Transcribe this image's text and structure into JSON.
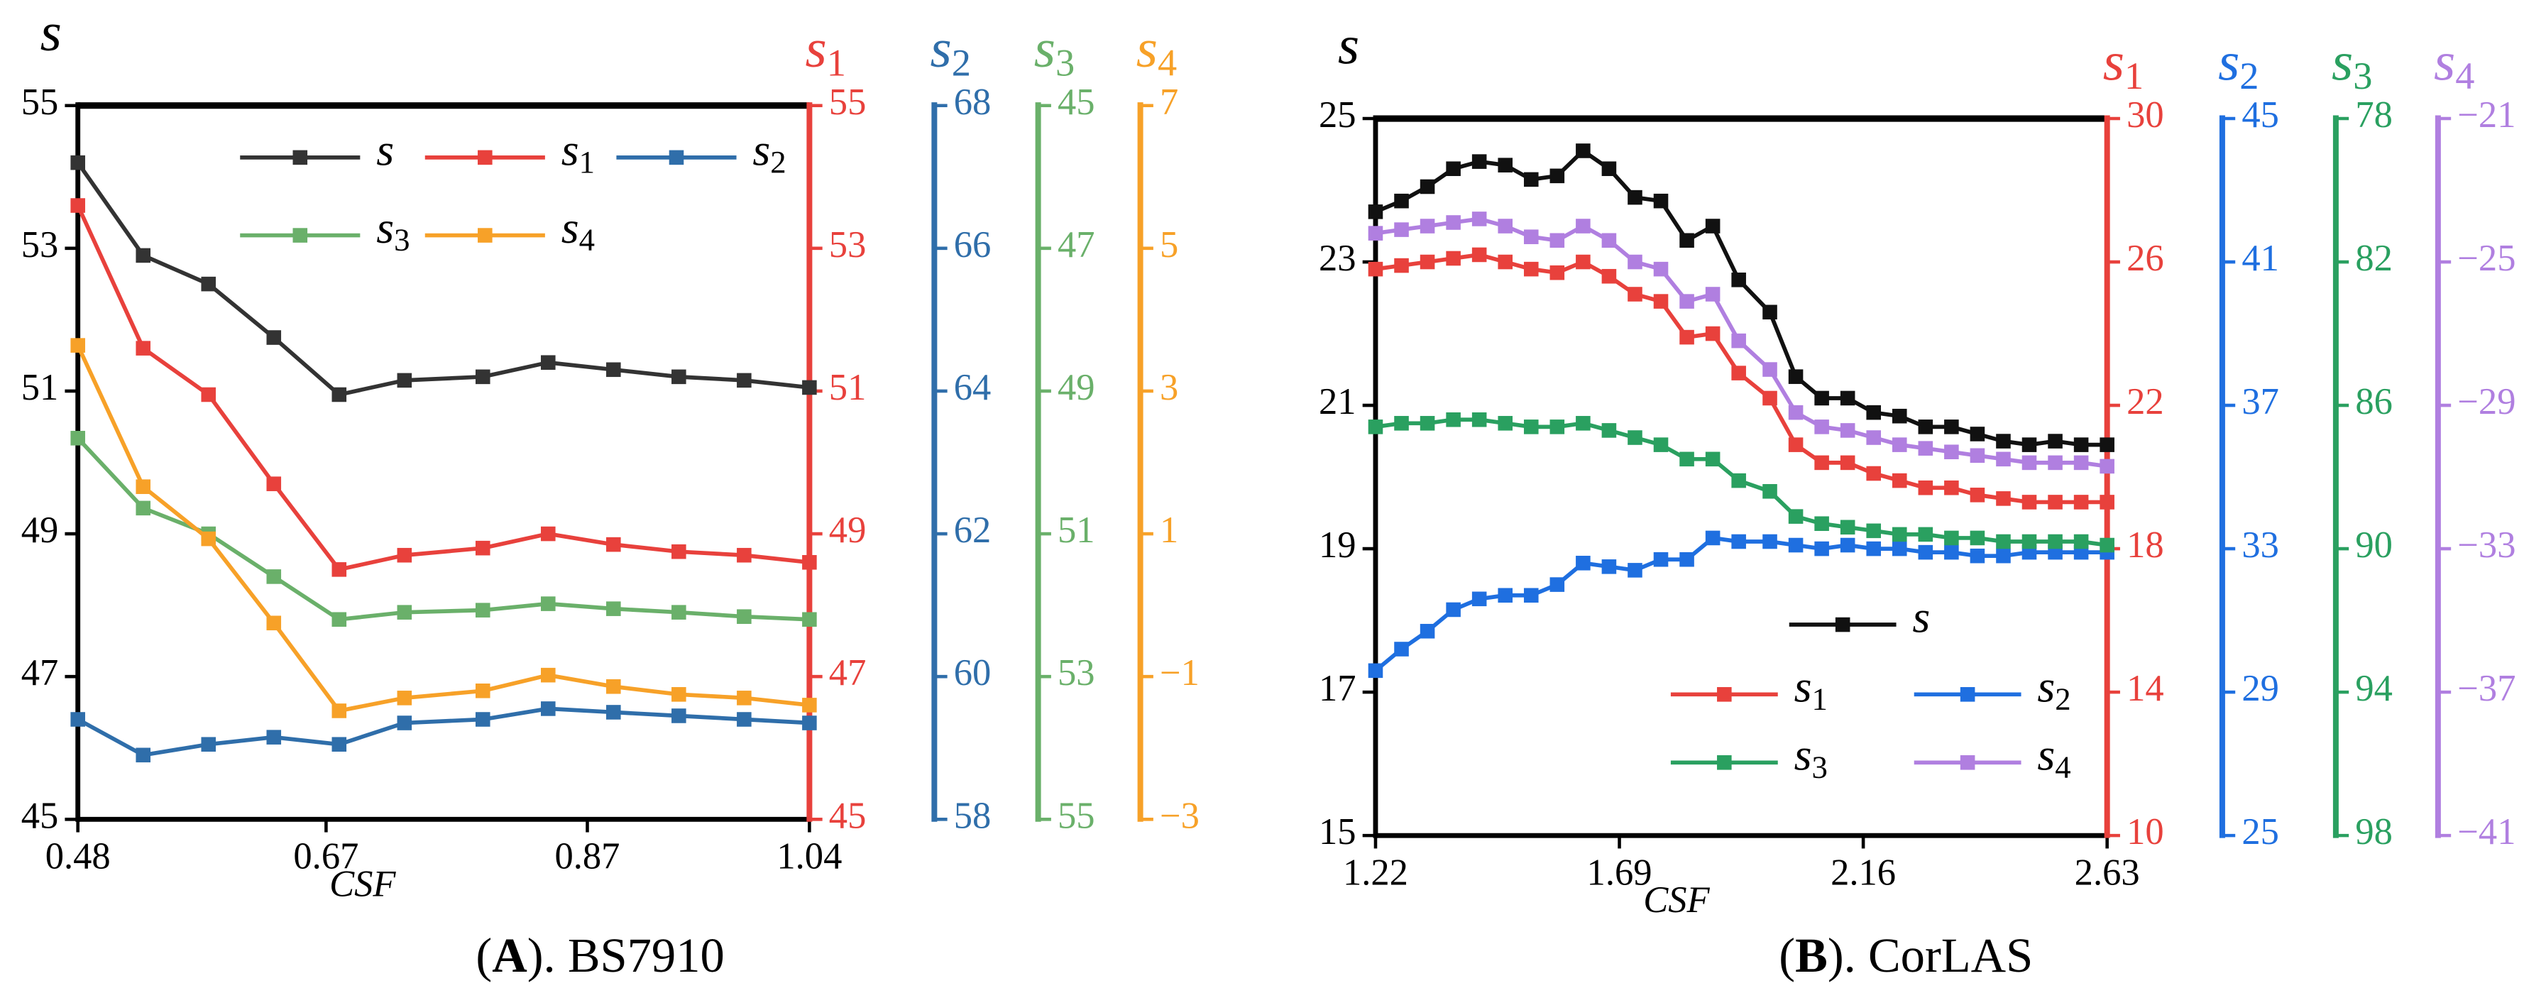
{
  "chart_data": [
    {
      "type": "line",
      "caption": "(A). BS7910",
      "xlabel": "CSF",
      "x": [
        0.48,
        0.53,
        0.58,
        0.63,
        0.68,
        0.73,
        0.79,
        0.84,
        0.89,
        0.94,
        0.99,
        1.04
      ],
      "xlim": [
        0.48,
        1.04
      ],
      "xticks": [
        0.48,
        0.67,
        0.87,
        1.04
      ],
      "ylabel": "s",
      "ylim": [
        45,
        55
      ],
      "yticks": [
        45,
        47,
        49,
        51,
        53,
        55
      ],
      "y2label": "s1",
      "y2lim": [
        45,
        55
      ],
      "y2ticks": [
        45,
        47,
        49,
        51,
        53,
        55
      ],
      "y3label": "s2",
      "y3lim": [
        58,
        68
      ],
      "y3ticks": [
        58,
        60,
        62,
        64,
        66,
        68
      ],
      "y4label": "s3",
      "y4lim": [
        55,
        45
      ],
      "y4ticks": [
        55,
        53,
        51,
        49,
        47,
        45
      ],
      "y5label": "s4",
      "y5lim": [
        -3,
        7
      ],
      "y5ticks": [
        {
          "value": -3,
          "label": "−3"
        },
        {
          "value": -1,
          "label": "−1"
        },
        1,
        3,
        5,
        7
      ],
      "series": [
        {
          "name": "s",
          "color": "#333333",
          "axis": "y",
          "values": [
            54.2,
            52.9,
            52.5,
            51.75,
            50.95,
            51.15,
            51.2,
            51.4,
            51.3,
            51.2,
            51.15,
            51.05
          ]
        },
        {
          "name": "s1",
          "color": "#e8413c",
          "axis": "y2",
          "values": [
            53.6,
            51.6,
            50.95,
            49.7,
            48.5,
            48.7,
            48.8,
            49.0,
            48.85,
            48.75,
            48.7,
            48.6
          ]
        },
        {
          "name": "s2",
          "color": "#2f6eaa",
          "axis": "y3",
          "values": [
            59.4,
            58.9,
            59.05,
            59.15,
            59.05,
            59.35,
            59.4,
            59.55,
            59.5,
            59.45,
            59.4,
            59.35
          ]
        },
        {
          "name": "s3",
          "color": "#6ab06a",
          "axis": "y4",
          "values": [
            49.66,
            50.64,
            51.0,
            51.6,
            52.2,
            52.1,
            52.07,
            51.98,
            52.05,
            52.1,
            52.16,
            52.2
          ]
        },
        {
          "name": "s4",
          "color": "#f7a128",
          "axis": "y5",
          "values": [
            3.64,
            1.66,
            0.93,
            -0.25,
            -1.48,
            -1.3,
            -1.2,
            -0.98,
            -1.14,
            -1.25,
            -1.3,
            -1.4
          ]
        }
      ]
    },
    {
      "type": "line",
      "caption": "(B). CorLAS",
      "xlabel": "CSF",
      "x": [
        1.22,
        1.27,
        1.32,
        1.37,
        1.42,
        1.47,
        1.52,
        1.57,
        1.62,
        1.67,
        1.72,
        1.77,
        1.82,
        1.87,
        1.92,
        1.98,
        2.03,
        2.08,
        2.13,
        2.18,
        2.23,
        2.28,
        2.33,
        2.38,
        2.43,
        2.48,
        2.53,
        2.58,
        2.63
      ],
      "xlim": [
        1.22,
        2.63
      ],
      "xticks": [
        1.22,
        1.69,
        2.16,
        2.63
      ],
      "ylabel": "s",
      "ylim": [
        15,
        25
      ],
      "yticks": [
        15,
        17,
        19,
        21,
        23,
        25
      ],
      "y2label": "s1",
      "y2lim": [
        10,
        30
      ],
      "y2ticks": [
        10,
        14,
        18,
        22,
        26,
        30
      ],
      "y3label": "s2",
      "y3lim": [
        25,
        45
      ],
      "y3ticks": [
        25,
        29,
        33,
        37,
        41,
        45
      ],
      "y4label": "s3",
      "y4lim": [
        98,
        78
      ],
      "y4ticks": [
        98,
        94,
        90,
        86,
        82,
        78
      ],
      "y5label": "s4",
      "y5lim": [
        -41,
        -21
      ],
      "y5ticks": [
        {
          "value": -41,
          "label": "−41"
        },
        {
          "value": -37,
          "label": "−37"
        },
        {
          "value": -33,
          "label": "−33"
        },
        {
          "value": -29,
          "label": "−29"
        },
        {
          "value": -25,
          "label": "−25"
        },
        {
          "value": -21,
          "label": "−21"
        }
      ],
      "series": [
        {
          "name": "s",
          "color": "#111111",
          "axis": "y",
          "values": [
            23.7,
            23.85,
            24.05,
            24.3,
            24.4,
            24.35,
            24.15,
            24.2,
            24.55,
            24.3,
            23.9,
            23.85,
            23.3,
            23.5,
            22.75,
            22.3,
            21.4,
            21.1,
            21.1,
            20.9,
            20.85,
            20.7,
            20.7,
            20.6,
            20.5,
            20.45,
            20.5,
            20.45,
            20.45
          ]
        },
        {
          "name": "s1",
          "color": "#e8413c",
          "axis": "y2",
          "values": [
            25.8,
            25.9,
            26.0,
            26.1,
            26.2,
            26.0,
            25.8,
            25.7,
            26.0,
            25.6,
            25.1,
            24.9,
            23.9,
            24.0,
            22.9,
            22.2,
            20.9,
            20.4,
            20.4,
            20.1,
            19.9,
            19.7,
            19.7,
            19.5,
            19.4,
            19.3,
            19.3,
            19.3,
            19.3
          ]
        },
        {
          "name": "s2",
          "color": "#1f6fe0",
          "axis": "y3",
          "values": [
            29.6,
            30.2,
            30.7,
            31.3,
            31.6,
            31.7,
            31.7,
            32.0,
            32.6,
            32.5,
            32.4,
            32.7,
            32.7,
            33.3,
            33.2,
            33.2,
            33.1,
            33.0,
            33.1,
            33.0,
            33.0,
            32.9,
            32.9,
            32.8,
            32.8,
            32.9,
            32.9,
            32.9,
            32.9
          ]
        },
        {
          "name": "s3",
          "color": "#2aa060",
          "axis": "y4",
          "values": [
            86.6,
            86.5,
            86.5,
            86.4,
            86.4,
            86.5,
            86.6,
            86.6,
            86.5,
            86.7,
            86.9,
            87.1,
            87.5,
            87.5,
            88.1,
            88.4,
            89.1,
            89.3,
            89.4,
            89.5,
            89.6,
            89.6,
            89.7,
            89.7,
            89.8,
            89.8,
            89.8,
            89.8,
            89.9
          ]
        },
        {
          "name": "s4",
          "color": "#b07fe0",
          "axis": "y5",
          "values": [
            -24.2,
            -24.1,
            -24.0,
            -23.9,
            -23.8,
            -24.0,
            -24.3,
            -24.4,
            -24.0,
            -24.4,
            -25.0,
            -25.2,
            -26.1,
            -25.9,
            -27.2,
            -28.0,
            -29.2,
            -29.6,
            -29.7,
            -29.9,
            -30.1,
            -30.2,
            -30.3,
            -30.4,
            -30.5,
            -30.6,
            -30.6,
            -30.6,
            -30.7
          ]
        }
      ]
    }
  ]
}
